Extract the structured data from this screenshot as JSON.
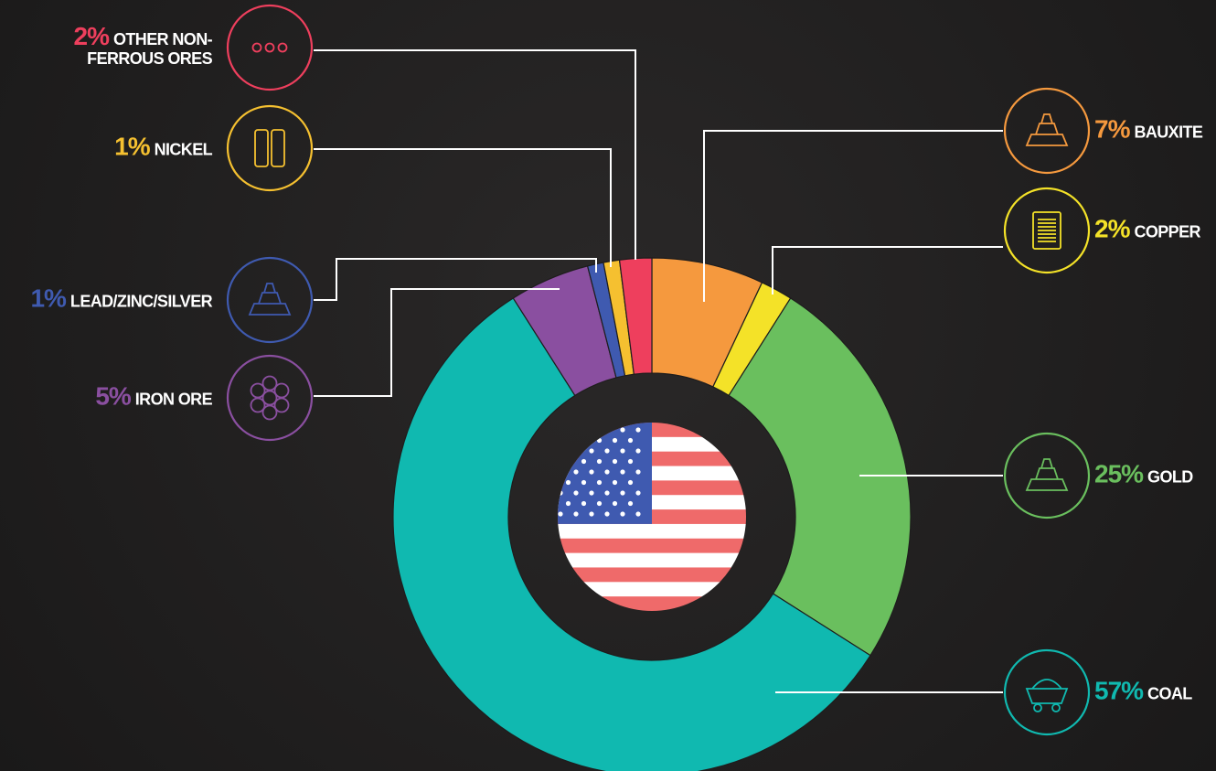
{
  "chart_data": {
    "type": "donut",
    "categories": [
      "BAUXITE",
      "COPPER",
      "GOLD",
      "COAL",
      "IRON ORE",
      "LEAD/ZINC/SILVER",
      "NICKEL",
      "OTHER NON-FERROUS ORES"
    ],
    "values": [
      7,
      2,
      25,
      57,
      5,
      1,
      1,
      2
    ],
    "value_labels": [
      "7%",
      "2%",
      "25%",
      "57%",
      "5%",
      "1%",
      "1%",
      "2%"
    ],
    "colors": [
      "#f5993e",
      "#f4e228",
      "#6abf5e",
      "#10b9b0",
      "#8a4fa0",
      "#3f5ab0",
      "#f5c030",
      "#ee3f5d"
    ]
  }
}
